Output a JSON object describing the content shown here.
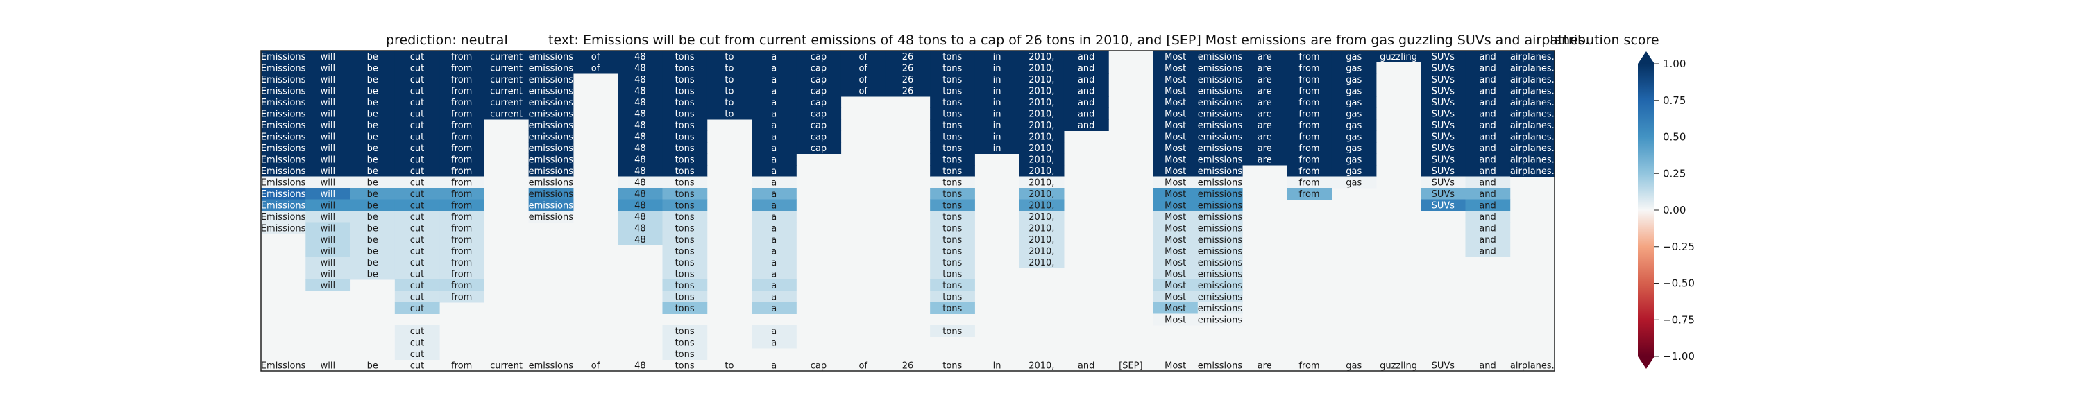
{
  "chart_data": {
    "type": "heatmap",
    "title_prediction": "prediction:  neutral",
    "title_text": "text:  Emissions will be cut from current emissions of 48 tons to a cap of 26 tons in 2010, and [SEP] Most emissions are from gas guzzling SUVs and airplanes.",
    "tokens": [
      "Emissions",
      "will",
      "be",
      "cut",
      "from",
      "current",
      "emissions",
      "of",
      "48",
      "tons",
      "to",
      "a",
      "cap",
      "of",
      "26",
      "tons",
      "in",
      "2010,",
      "and",
      "[SEP]",
      "Most",
      "emissions",
      "are",
      "from",
      "gas",
      "guzzling",
      "SUVs",
      "and",
      "airplanes."
    ],
    "colorbar": {
      "label": "attribution score",
      "ticks": [
        "1.00",
        "0.75",
        "0.50",
        "0.25",
        "0.00",
        "−0.25",
        "−0.50",
        "−0.75",
        "−1.00"
      ],
      "range": [
        -1,
        1
      ],
      "colormap": "RdBu"
    },
    "row_values": [
      [
        1,
        1,
        1,
        1,
        1,
        1,
        1,
        1,
        1,
        1,
        1,
        1,
        1,
        1,
        1,
        1,
        1,
        1,
        1,
        0,
        1,
        1,
        1,
        1,
        1,
        1,
        1,
        1,
        1
      ],
      [
        1,
        1,
        1,
        1,
        1,
        1,
        1,
        1,
        1,
        1,
        1,
        1,
        1,
        1,
        1,
        1,
        1,
        1,
        1,
        0,
        1,
        1,
        1,
        1,
        1,
        0,
        1,
        1,
        1
      ],
      [
        1,
        1,
        1,
        1,
        1,
        1,
        1,
        0,
        1,
        1,
        1,
        1,
        1,
        1,
        1,
        1,
        1,
        1,
        1,
        0,
        1,
        1,
        1,
        1,
        1,
        0,
        1,
        1,
        1
      ],
      [
        1,
        1,
        1,
        1,
        1,
        1,
        1,
        0,
        1,
        1,
        1,
        1,
        1,
        1,
        1,
        1,
        1,
        1,
        1,
        0,
        1,
        1,
        1,
        1,
        1,
        0,
        1,
        1,
        1
      ],
      [
        1,
        1,
        1,
        1,
        1,
        1,
        1,
        0,
        1,
        1,
        1,
        1,
        1,
        0,
        0,
        1,
        1,
        1,
        1,
        0,
        1,
        1,
        1,
        1,
        1,
        0,
        1,
        1,
        1
      ],
      [
        1,
        1,
        1,
        1,
        1,
        1,
        1,
        0,
        1,
        1,
        1,
        1,
        1,
        0,
        0,
        1,
        1,
        1,
        1,
        0,
        1,
        1,
        1,
        1,
        1,
        0,
        1,
        1,
        1
      ],
      [
        1,
        1,
        1,
        1,
        1,
        0,
        1,
        0,
        1,
        1,
        0,
        1,
        1,
        0,
        0,
        1,
        1,
        1,
        1,
        0,
        1,
        1,
        1,
        1,
        1,
        0,
        1,
        1,
        1
      ],
      [
        1,
        1,
        1,
        1,
        1,
        0,
        1,
        0,
        1,
        1,
        0,
        1,
        1,
        0,
        0,
        1,
        1,
        1,
        0,
        0,
        1,
        1,
        1,
        1,
        1,
        0,
        1,
        1,
        1
      ],
      [
        1,
        1,
        1,
        1,
        1,
        0,
        1,
        0,
        1,
        1,
        0,
        1,
        1,
        0,
        0,
        1,
        1,
        1,
        0,
        0,
        1,
        1,
        1,
        1,
        1,
        0,
        1,
        1,
        1
      ],
      [
        1,
        1,
        1,
        1,
        1,
        0,
        1,
        0,
        1,
        1,
        0,
        1,
        0,
        0,
        0,
        1,
        0,
        1,
        0,
        0,
        1,
        1,
        1,
        1,
        1,
        0,
        1,
        1,
        1
      ],
      [
        1,
        1,
        1,
        1,
        1,
        0,
        1,
        0,
        1,
        1,
        0,
        1,
        0,
        0,
        0,
        1,
        0,
        1,
        0,
        0,
        1,
        1,
        0,
        1,
        1,
        0,
        1,
        1,
        1
      ],
      [
        0.02,
        0.02,
        0.02,
        0.02,
        0.02,
        0,
        0.02,
        0,
        0.02,
        0.02,
        0,
        0.02,
        0,
        0,
        0,
        0.02,
        0,
        0.02,
        0,
        0,
        0.02,
        0.02,
        0,
        0.02,
        0.02,
        0,
        0.02,
        0.05,
        0
      ],
      [
        0.75,
        0.65,
        0.45,
        0.45,
        0.45,
        0,
        0.55,
        0,
        0.45,
        0.35,
        0,
        0.35,
        0,
        0,
        0,
        0.35,
        0,
        0.35,
        0,
        0,
        0.5,
        0.5,
        0,
        0.35,
        0,
        0,
        0.35,
        0.35,
        0
      ],
      [
        0.6,
        0.5,
        0.5,
        0.5,
        0.5,
        0,
        0.6,
        0,
        0.5,
        0.45,
        0,
        0.45,
        0,
        0,
        0,
        0.45,
        0,
        0.45,
        0,
        0,
        0.5,
        0.5,
        0,
        0,
        0,
        0,
        0.6,
        0.5,
        0
      ],
      [
        0.05,
        0.1,
        0.1,
        0.1,
        0.1,
        0,
        0.02,
        0,
        0.15,
        0.1,
        0,
        0.1,
        0,
        0,
        0,
        0.1,
        0,
        0.1,
        0,
        0,
        0.1,
        0.1,
        0,
        0,
        0,
        0,
        0,
        0.1,
        0
      ],
      [
        0.05,
        0.15,
        0.1,
        0.1,
        0.1,
        0,
        0,
        0,
        0.15,
        0.1,
        0,
        0.1,
        0,
        0,
        0,
        0.1,
        0,
        0.1,
        0,
        0,
        0.1,
        0.1,
        0,
        0,
        0,
        0,
        0,
        0.1,
        0
      ],
      [
        0,
        0.15,
        0.1,
        0.1,
        0.1,
        0,
        0,
        0,
        0.15,
        0.1,
        0,
        0.1,
        0,
        0,
        0,
        0.1,
        0,
        0.1,
        0,
        0,
        0.1,
        0.1,
        0,
        0,
        0,
        0,
        0,
        0.1,
        0
      ],
      [
        0,
        0.15,
        0.1,
        0.1,
        0.1,
        0,
        0,
        0,
        0,
        0.1,
        0,
        0.1,
        0,
        0,
        0,
        0.1,
        0,
        0.1,
        0,
        0,
        0.1,
        0.1,
        0,
        0,
        0,
        0,
        0,
        0.1,
        0
      ],
      [
        0,
        0.1,
        0.1,
        0.1,
        0.1,
        0,
        0,
        0,
        0,
        0.1,
        0,
        0.1,
        0,
        0,
        0,
        0.1,
        0,
        0.1,
        0,
        0,
        0.1,
        0.1,
        0,
        0,
        0,
        0,
        0,
        0,
        0
      ],
      [
        0,
        0.1,
        0.1,
        0.1,
        0.1,
        0,
        0,
        0,
        0,
        0.1,
        0,
        0.1,
        0,
        0,
        0,
        0.1,
        0,
        0,
        0,
        0,
        0.1,
        0.1,
        0,
        0,
        0,
        0,
        0,
        0,
        0
      ],
      [
        0,
        0.15,
        0,
        0.15,
        0.15,
        0,
        0,
        0,
        0,
        0.15,
        0,
        0.15,
        0,
        0,
        0,
        0.15,
        0,
        0,
        0,
        0,
        0.15,
        0.15,
        0,
        0,
        0,
        0,
        0,
        0,
        0
      ],
      [
        0,
        0,
        0,
        0.1,
        0.1,
        0,
        0,
        0,
        0,
        0.1,
        0,
        0.1,
        0,
        0,
        0,
        0.1,
        0,
        0,
        0,
        0,
        0.1,
        0.1,
        0,
        0,
        0,
        0,
        0,
        0,
        0
      ],
      [
        0,
        0,
        0,
        0.2,
        0,
        0,
        0,
        0,
        0,
        0.25,
        0,
        0.2,
        0,
        0,
        0,
        0.25,
        0,
        0,
        0,
        0,
        0.25,
        0.05,
        0,
        0,
        0,
        0,
        0,
        0,
        0
      ],
      [
        0,
        0,
        0,
        0,
        0,
        0,
        0,
        0,
        0,
        0,
        0,
        0,
        0,
        0,
        0,
        0,
        0,
        0,
        0,
        0,
        0.02,
        0.02,
        0,
        0,
        0,
        0,
        0,
        0,
        0
      ],
      [
        0,
        0,
        0,
        0.05,
        0,
        0,
        0,
        0,
        0,
        0.05,
        0,
        0.05,
        0,
        0,
        0,
        0.05,
        0,
        0,
        0,
        0,
        0,
        0,
        0,
        0,
        0,
        0,
        0,
        0,
        0
      ],
      [
        0,
        0,
        0,
        0.05,
        0,
        0,
        0,
        0,
        0,
        0.05,
        0,
        0.05,
        0,
        0,
        0,
        0,
        0,
        0,
        0,
        0,
        0,
        0,
        0,
        0,
        0,
        0,
        0,
        0,
        0
      ],
      [
        0,
        0,
        0,
        0.05,
        0,
        0,
        0,
        0,
        0,
        0.05,
        0,
        0,
        0,
        0,
        0,
        0,
        0,
        0,
        0,
        0,
        0,
        0,
        0,
        0,
        0,
        0,
        0,
        0,
        0
      ]
    ],
    "row_labels": [
      [
        1,
        1,
        1,
        1,
        1,
        1,
        1,
        1,
        1,
        1,
        1,
        1,
        1,
        1,
        1,
        1,
        1,
        1,
        1,
        0,
        1,
        1,
        1,
        1,
        1,
        1,
        1,
        1,
        1
      ],
      [
        1,
        1,
        1,
        1,
        1,
        1,
        1,
        1,
        1,
        1,
        1,
        1,
        1,
        1,
        1,
        1,
        1,
        1,
        1,
        0,
        1,
        1,
        1,
        1,
        1,
        0,
        1,
        1,
        1
      ],
      [
        1,
        1,
        1,
        1,
        1,
        1,
        1,
        0,
        1,
        1,
        1,
        1,
        1,
        1,
        1,
        1,
        1,
        1,
        1,
        0,
        1,
        1,
        1,
        1,
        1,
        0,
        1,
        1,
        1
      ],
      [
        1,
        1,
        1,
        1,
        1,
        1,
        1,
        0,
        1,
        1,
        1,
        1,
        1,
        1,
        1,
        1,
        1,
        1,
        1,
        0,
        1,
        1,
        1,
        1,
        1,
        0,
        1,
        1,
        1
      ],
      [
        1,
        1,
        1,
        1,
        1,
        1,
        1,
        0,
        1,
        1,
        1,
        1,
        1,
        0,
        0,
        1,
        1,
        1,
        1,
        0,
        1,
        1,
        1,
        1,
        1,
        0,
        1,
        1,
        1
      ],
      [
        1,
        1,
        1,
        1,
        1,
        1,
        1,
        0,
        1,
        1,
        1,
        1,
        1,
        0,
        0,
        1,
        1,
        1,
        1,
        0,
        1,
        1,
        1,
        1,
        1,
        0,
        1,
        1,
        1
      ],
      [
        1,
        1,
        1,
        1,
        1,
        0,
        1,
        0,
        1,
        1,
        0,
        1,
        1,
        0,
        0,
        1,
        1,
        1,
        1,
        0,
        1,
        1,
        1,
        1,
        1,
        0,
        1,
        1,
        1
      ],
      [
        1,
        1,
        1,
        1,
        1,
        0,
        1,
        0,
        1,
        1,
        0,
        1,
        1,
        0,
        0,
        1,
        1,
        1,
        0,
        0,
        1,
        1,
        1,
        1,
        1,
        0,
        1,
        1,
        1
      ],
      [
        1,
        1,
        1,
        1,
        1,
        0,
        1,
        0,
        1,
        1,
        0,
        1,
        1,
        0,
        0,
        1,
        1,
        1,
        0,
        0,
        1,
        1,
        1,
        1,
        1,
        0,
        1,
        1,
        1
      ],
      [
        1,
        1,
        1,
        1,
        1,
        0,
        1,
        0,
        1,
        1,
        0,
        1,
        0,
        0,
        0,
        1,
        0,
        1,
        0,
        0,
        1,
        1,
        1,
        1,
        1,
        0,
        1,
        1,
        1
      ],
      [
        1,
        1,
        1,
        1,
        1,
        0,
        1,
        0,
        1,
        1,
        0,
        1,
        0,
        0,
        0,
        1,
        0,
        1,
        0,
        0,
        1,
        1,
        0,
        1,
        1,
        0,
        1,
        1,
        1
      ],
      [
        1,
        1,
        1,
        1,
        1,
        0,
        1,
        0,
        1,
        1,
        0,
        1,
        0,
        0,
        0,
        1,
        0,
        1,
        0,
        0,
        1,
        1,
        0,
        1,
        1,
        0,
        1,
        1,
        0
      ],
      [
        1,
        1,
        1,
        1,
        1,
        0,
        1,
        0,
        1,
        1,
        0,
        1,
        0,
        0,
        0,
        1,
        0,
        1,
        0,
        0,
        1,
        1,
        0,
        1,
        0,
        0,
        1,
        1,
        0
      ],
      [
        1,
        1,
        1,
        1,
        1,
        0,
        1,
        0,
        1,
        1,
        0,
        1,
        0,
        0,
        0,
        1,
        0,
        1,
        0,
        0,
        1,
        1,
        0,
        0,
        0,
        0,
        1,
        1,
        0
      ],
      [
        1,
        1,
        1,
        1,
        1,
        0,
        1,
        0,
        1,
        1,
        0,
        1,
        0,
        0,
        0,
        1,
        0,
        1,
        0,
        0,
        1,
        1,
        0,
        0,
        0,
        0,
        0,
        1,
        0
      ],
      [
        1,
        1,
        1,
        1,
        1,
        0,
        0,
        0,
        1,
        1,
        0,
        1,
        0,
        0,
        0,
        1,
        0,
        1,
        0,
        0,
        1,
        1,
        0,
        0,
        0,
        0,
        0,
        1,
        0
      ],
      [
        0,
        1,
        1,
        1,
        1,
        0,
        0,
        0,
        1,
        1,
        0,
        1,
        0,
        0,
        0,
        1,
        0,
        1,
        0,
        0,
        1,
        1,
        0,
        0,
        0,
        0,
        0,
        1,
        0
      ],
      [
        0,
        1,
        1,
        1,
        1,
        0,
        0,
        0,
        0,
        1,
        0,
        1,
        0,
        0,
        0,
        1,
        0,
        1,
        0,
        0,
        1,
        1,
        0,
        0,
        0,
        0,
        0,
        1,
        0
      ],
      [
        0,
        1,
        1,
        1,
        1,
        0,
        0,
        0,
        0,
        1,
        0,
        1,
        0,
        0,
        0,
        1,
        0,
        1,
        0,
        0,
        1,
        1,
        0,
        0,
        0,
        0,
        0,
        0,
        0
      ],
      [
        0,
        1,
        1,
        1,
        1,
        0,
        0,
        0,
        0,
        1,
        0,
        1,
        0,
        0,
        0,
        1,
        0,
        0,
        0,
        0,
        1,
        1,
        0,
        0,
        0,
        0,
        0,
        0,
        0
      ],
      [
        0,
        1,
        0,
        1,
        1,
        0,
        0,
        0,
        0,
        1,
        0,
        1,
        0,
        0,
        0,
        1,
        0,
        0,
        0,
        0,
        1,
        1,
        0,
        0,
        0,
        0,
        0,
        0,
        0
      ],
      [
        0,
        0,
        0,
        1,
        1,
        0,
        0,
        0,
        0,
        1,
        0,
        1,
        0,
        0,
        0,
        1,
        0,
        0,
        0,
        0,
        1,
        1,
        0,
        0,
        0,
        0,
        0,
        0,
        0
      ],
      [
        0,
        0,
        0,
        1,
        0,
        0,
        0,
        0,
        0,
        1,
        0,
        1,
        0,
        0,
        0,
        1,
        0,
        0,
        0,
        0,
        1,
        1,
        0,
        0,
        0,
        0,
        0,
        0,
        0
      ],
      [
        0,
        0,
        0,
        0,
        0,
        0,
        0,
        0,
        0,
        0,
        0,
        0,
        0,
        0,
        0,
        0,
        0,
        0,
        0,
        0,
        1,
        1,
        0,
        0,
        0,
        0,
        0,
        0,
        0
      ],
      [
        0,
        0,
        0,
        1,
        0,
        0,
        0,
        0,
        0,
        1,
        0,
        1,
        0,
        0,
        0,
        1,
        0,
        0,
        0,
        0,
        0,
        0,
        0,
        0,
        0,
        0,
        0,
        0,
        0
      ],
      [
        0,
        0,
        0,
        1,
        0,
        0,
        0,
        0,
        0,
        1,
        0,
        1,
        0,
        0,
        0,
        0,
        0,
        0,
        0,
        0,
        0,
        0,
        0,
        0,
        0,
        0,
        0,
        0,
        0
      ],
      [
        0,
        0,
        0,
        1,
        0,
        0,
        0,
        0,
        0,
        1,
        0,
        0,
        0,
        0,
        0,
        0,
        0,
        0,
        0,
        0,
        0,
        0,
        0,
        0,
        0,
        0,
        0,
        0,
        0
      ]
    ],
    "footer_row": [
      1,
      1,
      1,
      1,
      1,
      1,
      1,
      1,
      1,
      1,
      1,
      1,
      1,
      1,
      1,
      1,
      1,
      1,
      1,
      1,
      1,
      1,
      1,
      1,
      1,
      1,
      1,
      1,
      1
    ]
  }
}
